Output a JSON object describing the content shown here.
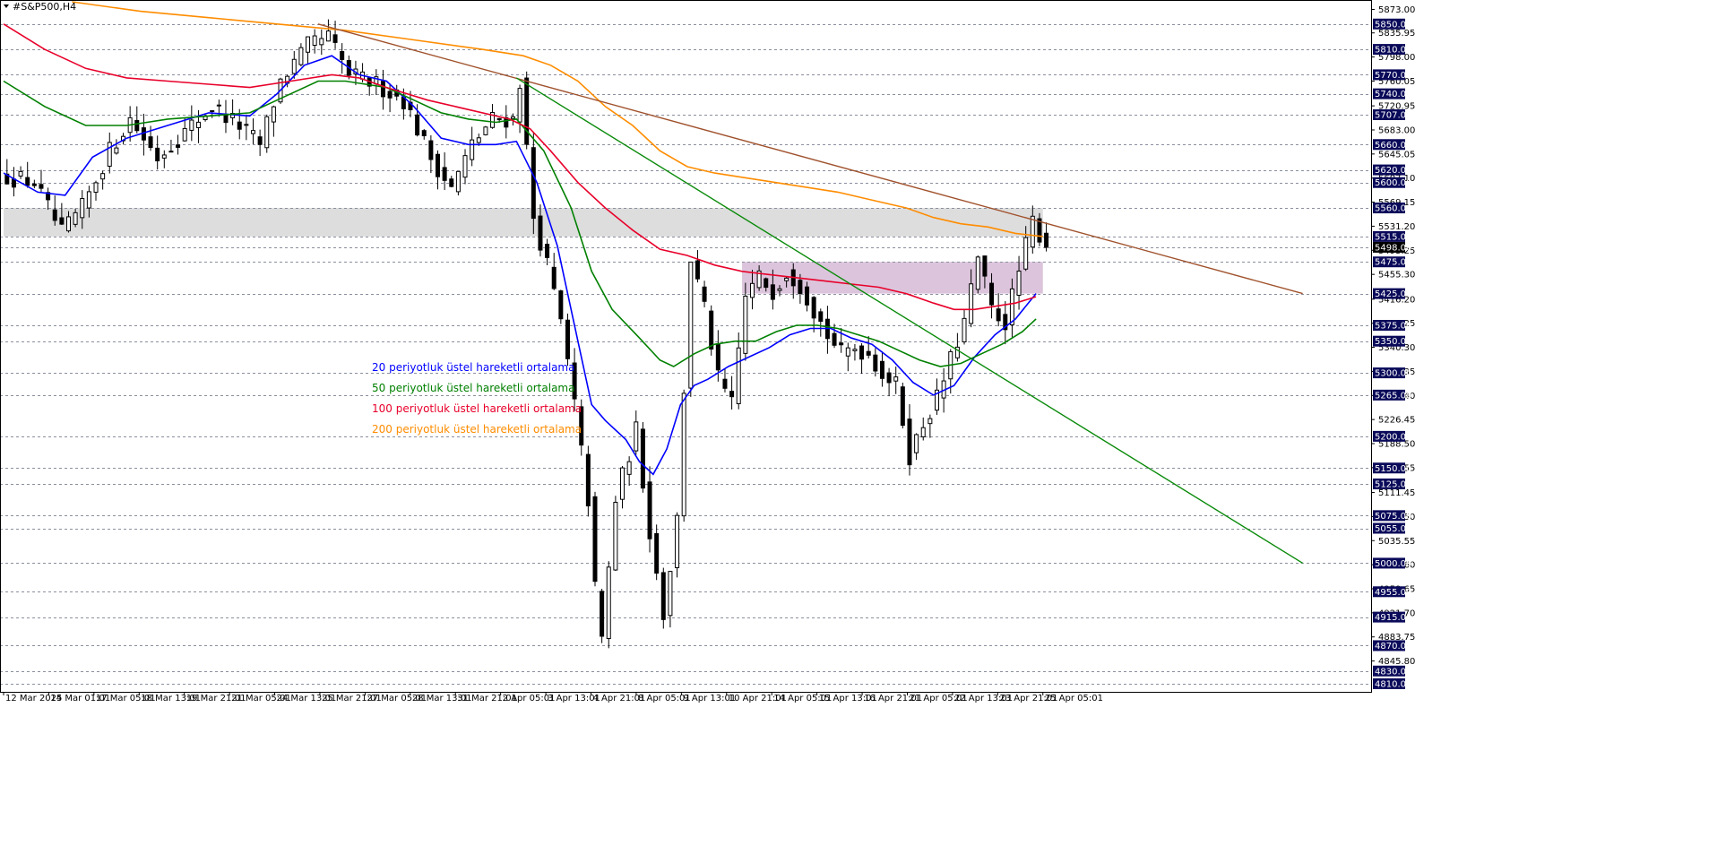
{
  "window": {
    "title": "#S&P500,H4"
  },
  "colors": {
    "background": "#ffffff",
    "grid": "#8a8f9e",
    "candle": "#000000",
    "price_box": "#0a0a5a",
    "ema20": "#0000ff",
    "ema50": "#008000",
    "ema100": "#e8002a",
    "ema200": "#ff8c00",
    "trend_brown": "#a0522d",
    "trend_green": "#0a8a0a",
    "zone_gray": "#d9d9d9",
    "zone_purple": "#d8bfd8"
  },
  "legend": [
    {
      "label": "20 periyotluk üstel hareketli ortalama",
      "color": "#0000ff"
    },
    {
      "label": "50 periyotluk üstel hareketli ortalama",
      "color": "#008000"
    },
    {
      "label": "100 periyotluk üstel hareketli ortalama",
      "color": "#e8002a"
    },
    {
      "label": "200 periyotluk üstel hareketli ortalama",
      "color": "#ff8c00"
    }
  ],
  "chart_data": {
    "type": "candlestick",
    "title": "#S&P500,H4",
    "ylim": [
      4800,
      5885
    ],
    "y_ticks": [
      "5873.00",
      "5835.95",
      "5798.00",
      "5760.05",
      "5720.95",
      "5683.00",
      "5645.05",
      "5607.10",
      "5569.15",
      "5531.20",
      "5493.25",
      "5455.30",
      "5416.20",
      "5378.25",
      "5340.30",
      "5302.35",
      "5264.40",
      "5226.45",
      "5188.50",
      "5150.55",
      "5111.45",
      "5073.50",
      "5035.55",
      "4997.60",
      "4959.65",
      "4921.70",
      "4883.75",
      "4845.80"
    ],
    "levels": [
      "5850.00",
      "5810.00",
      "5770.00",
      "5740.00",
      "5707.00",
      "5660.00",
      "5620.00",
      "5600.00",
      "5560.00",
      "5515.00",
      "5498.00",
      "5475.00",
      "5425.00",
      "5375.00",
      "5350.00",
      "5300.00",
      "5265.00",
      "5200.00",
      "5150.00",
      "5125.00",
      "5075.00",
      "5055.00",
      "5000.00",
      "4955.00",
      "4915.00",
      "4870.00",
      "4830.00",
      "4810.00"
    ],
    "x_labels": [
      "12 Mar 2025",
      "14 Mar 01:01",
      "17 Mar 05:01",
      "18 Mar 13:01",
      "19 Mar 21:01",
      "21 Mar 05:01",
      "24 Mar 13:01",
      "25 Mar 21:01",
      "27 Mar 05:01",
      "28 Mar 13:01",
      "31 Mar 21:01",
      "2 Apr 05:01",
      "3 Apr 13:01",
      "4 Apr 21:01",
      "8 Apr 05:01",
      "9 Apr 13:01",
      "10 Apr 21:01",
      "14 Apr 05:01",
      "15 Apr 13:01",
      "16 Apr 21:01",
      "21 Apr 05:01",
      "22 Apr 13:01",
      "23 Apr 21:01",
      "25 Apr 05:01"
    ],
    "current_price": "5498.00",
    "zones": [
      {
        "name": "gray-resistance-zone",
        "from_bar": 0,
        "to_bar": 152,
        "low": 5515,
        "high": 5560
      },
      {
        "name": "purple-resistance-zone",
        "from_bar": 108,
        "to_bar": 152,
        "low": 5425,
        "high": 5475
      }
    ],
    "trendlines": [
      {
        "name": "brown-trendline",
        "x1_bar": 46,
        "y1": 5850,
        "x2_bar": 190,
        "y2": 5425
      },
      {
        "name": "green-trendline",
        "x1_bar": 75,
        "y1": 5765,
        "x2_bar": 190,
        "y2": 5000
      }
    ],
    "close_path": [
      [
        0,
        5610
      ],
      [
        4,
        5600
      ],
      [
        8,
        5520
      ],
      [
        11,
        5560
      ],
      [
        15,
        5650
      ],
      [
        18,
        5700
      ],
      [
        22,
        5640
      ],
      [
        26,
        5680
      ],
      [
        30,
        5720
      ],
      [
        34,
        5690
      ],
      [
        37,
        5660
      ],
      [
        40,
        5760
      ],
      [
        44,
        5815
      ],
      [
        47,
        5830
      ],
      [
        50,
        5770
      ],
      [
        54,
        5755
      ],
      [
        58,
        5730
      ],
      [
        62,
        5640
      ],
      [
        65,
        5590
      ],
      [
        68,
        5660
      ],
      [
        71,
        5700
      ],
      [
        74,
        5700
      ],
      [
        75,
        5760
      ],
      [
        77,
        5545
      ],
      [
        79,
        5470
      ],
      [
        81,
        5380
      ],
      [
        83,
        5250
      ],
      [
        85,
        5100
      ],
      [
        86,
        4960
      ],
      [
        87,
        4880
      ],
      [
        89,
        5100
      ],
      [
        92,
        5210
      ],
      [
        94,
        5050
      ],
      [
        96,
        4920
      ],
      [
        98,
        5070
      ],
      [
        100,
        5480
      ],
      [
        102,
        5400
      ],
      [
        104,
        5290
      ],
      [
        106,
        5250
      ],
      [
        108,
        5420
      ],
      [
        110,
        5450
      ],
      [
        112,
        5430
      ],
      [
        114,
        5460
      ],
      [
        116,
        5440
      ],
      [
        118,
        5400
      ],
      [
        120,
        5360
      ],
      [
        122,
        5330
      ],
      [
        124,
        5340
      ],
      [
        126,
        5330
      ],
      [
        128,
        5300
      ],
      [
        130,
        5280
      ],
      [
        132,
        5170
      ],
      [
        134,
        5220
      ],
      [
        136,
        5260
      ],
      [
        138,
        5320
      ],
      [
        140,
        5380
      ],
      [
        142,
        5480
      ],
      [
        144,
        5400
      ],
      [
        146,
        5380
      ],
      [
        148,
        5460
      ],
      [
        150,
        5540
      ],
      [
        152,
        5498
      ]
    ],
    "series": [
      {
        "name": "20 periyotluk üstel hareketli ortalama",
        "values": [
          [
            0,
            5615
          ],
          [
            5,
            5585
          ],
          [
            9,
            5580
          ],
          [
            13,
            5640
          ],
          [
            18,
            5670
          ],
          [
            24,
            5690
          ],
          [
            30,
            5710
          ],
          [
            36,
            5705
          ],
          [
            40,
            5740
          ],
          [
            44,
            5785
          ],
          [
            48,
            5800
          ],
          [
            52,
            5770
          ],
          [
            56,
            5760
          ],
          [
            60,
            5720
          ],
          [
            64,
            5670
          ],
          [
            68,
            5660
          ],
          [
            72,
            5660
          ],
          [
            75,
            5665
          ],
          [
            78,
            5600
          ],
          [
            81,
            5500
          ],
          [
            84,
            5350
          ],
          [
            86,
            5250
          ],
          [
            88,
            5225
          ],
          [
            91,
            5195
          ],
          [
            93,
            5160
          ],
          [
            95,
            5140
          ],
          [
            97,
            5180
          ],
          [
            99,
            5250
          ],
          [
            101,
            5280
          ],
          [
            103,
            5290
          ],
          [
            106,
            5310
          ],
          [
            109,
            5325
          ],
          [
            112,
            5340
          ],
          [
            115,
            5360
          ],
          [
            118,
            5370
          ],
          [
            121,
            5370
          ],
          [
            124,
            5355
          ],
          [
            127,
            5345
          ],
          [
            130,
            5320
          ],
          [
            133,
            5285
          ],
          [
            136,
            5265
          ],
          [
            139,
            5280
          ],
          [
            142,
            5325
          ],
          [
            145,
            5360
          ],
          [
            148,
            5385
          ],
          [
            151,
            5425
          ]
        ]
      },
      {
        "name": "50 periyotluk üstel hareketli ortalama",
        "values": [
          [
            0,
            5760
          ],
          [
            6,
            5720
          ],
          [
            12,
            5690
          ],
          [
            18,
            5690
          ],
          [
            24,
            5700
          ],
          [
            30,
            5705
          ],
          [
            36,
            5710
          ],
          [
            40,
            5730
          ],
          [
            46,
            5760
          ],
          [
            50,
            5760
          ],
          [
            56,
            5750
          ],
          [
            60,
            5730
          ],
          [
            64,
            5710
          ],
          [
            68,
            5700
          ],
          [
            72,
            5695
          ],
          [
            75,
            5700
          ],
          [
            79,
            5650
          ],
          [
            83,
            5560
          ],
          [
            86,
            5460
          ],
          [
            89,
            5400
          ],
          [
            93,
            5355
          ],
          [
            96,
            5320
          ],
          [
            98,
            5310
          ],
          [
            101,
            5330
          ],
          [
            104,
            5345
          ],
          [
            107,
            5350
          ],
          [
            110,
            5350
          ],
          [
            113,
            5365
          ],
          [
            116,
            5375
          ],
          [
            119,
            5375
          ],
          [
            122,
            5370
          ],
          [
            125,
            5360
          ],
          [
            128,
            5350
          ],
          [
            131,
            5335
          ],
          [
            134,
            5320
          ],
          [
            137,
            5310
          ],
          [
            140,
            5315
          ],
          [
            143,
            5330
          ],
          [
            146,
            5345
          ],
          [
            149,
            5365
          ],
          [
            151,
            5385
          ]
        ]
      },
      {
        "name": "100 periyotluk üstel hareketli ortalama",
        "values": [
          [
            0,
            5850
          ],
          [
            6,
            5810
          ],
          [
            12,
            5780
          ],
          [
            18,
            5765
          ],
          [
            24,
            5760
          ],
          [
            30,
            5755
          ],
          [
            36,
            5750
          ],
          [
            42,
            5760
          ],
          [
            48,
            5770
          ],
          [
            52,
            5765
          ],
          [
            56,
            5750
          ],
          [
            62,
            5730
          ],
          [
            68,
            5715
          ],
          [
            74,
            5700
          ],
          [
            77,
            5685
          ],
          [
            80,
            5650
          ],
          [
            84,
            5600
          ],
          [
            88,
            5560
          ],
          [
            92,
            5525
          ],
          [
            96,
            5495
          ],
          [
            100,
            5485
          ],
          [
            104,
            5470
          ],
          [
            108,
            5460
          ],
          [
            112,
            5455
          ],
          [
            116,
            5450
          ],
          [
            120,
            5445
          ],
          [
            124,
            5440
          ],
          [
            128,
            5435
          ],
          [
            132,
            5425
          ],
          [
            136,
            5410
          ],
          [
            139,
            5400
          ],
          [
            142,
            5400
          ],
          [
            145,
            5405
          ],
          [
            148,
            5410
          ],
          [
            151,
            5420
          ]
        ]
      },
      {
        "name": "200 periyotluk üstel hareketli ortalama",
        "values": [
          [
            10,
            5885
          ],
          [
            20,
            5870
          ],
          [
            30,
            5860
          ],
          [
            40,
            5850
          ],
          [
            50,
            5840
          ],
          [
            60,
            5825
          ],
          [
            70,
            5810
          ],
          [
            76,
            5800
          ],
          [
            80,
            5785
          ],
          [
            84,
            5760
          ],
          [
            88,
            5720
          ],
          [
            92,
            5690
          ],
          [
            96,
            5650
          ],
          [
            100,
            5625
          ],
          [
            104,
            5615
          ],
          [
            110,
            5605
          ],
          [
            116,
            5595
          ],
          [
            122,
            5585
          ],
          [
            128,
            5570
          ],
          [
            132,
            5560
          ],
          [
            136,
            5545
          ],
          [
            140,
            5535
          ],
          [
            144,
            5530
          ],
          [
            148,
            5520
          ],
          [
            152,
            5515
          ]
        ]
      }
    ]
  }
}
